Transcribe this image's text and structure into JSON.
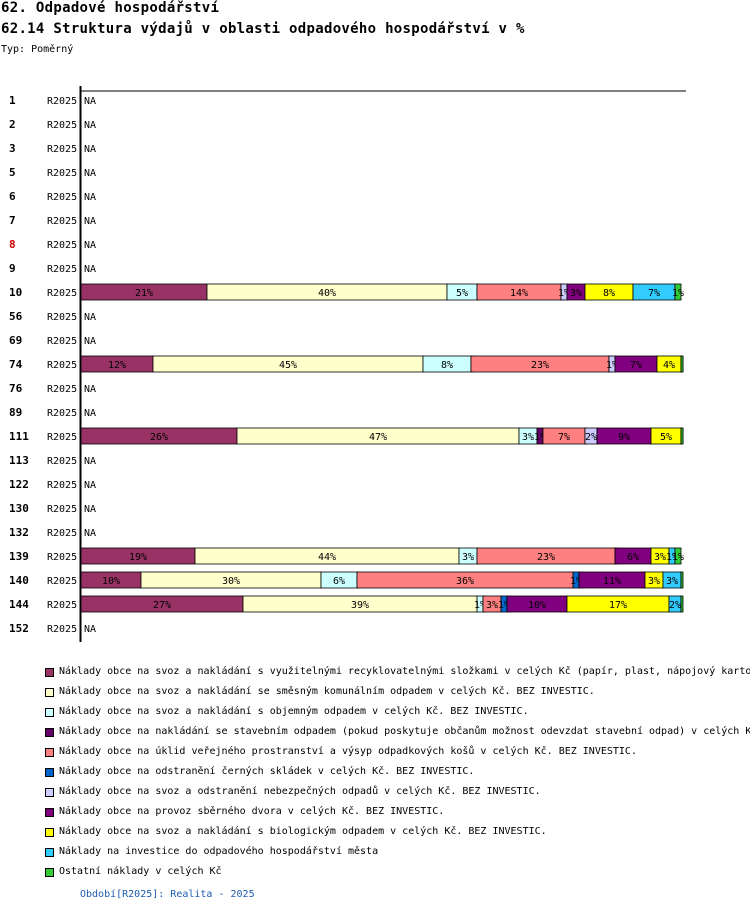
{
  "header": {
    "title": "62. Odpadové hospodářství",
    "subtitle": "62.14 Struktura výdajů v oblasti odpadového hospodářství v %",
    "type_label": "Typ: Poměrný"
  },
  "footer": {
    "period": "Období[R2025]: Realita - 2025"
  },
  "chart_data": {
    "type": "bar",
    "orientation": "horizontal",
    "stacked": true,
    "unit": "%",
    "xlim": [
      0,
      100
    ],
    "highlight_color": "#cc0000",
    "categories": [
      "1",
      "2",
      "3",
      "5",
      "6",
      "7",
      "8",
      "9",
      "10",
      "56",
      "69",
      "74",
      "76",
      "89",
      "111",
      "113",
      "122",
      "130",
      "132",
      "139",
      "140",
      "144",
      "152"
    ],
    "highlighted": [
      "8"
    ],
    "period_labels": [
      "R2025",
      "R2025",
      "R2025",
      "R2025",
      "R2025",
      "R2025",
      "R2025",
      "R2025",
      "R2025",
      "R2025",
      "R2025",
      "R2025",
      "R2025",
      "R2025",
      "R2025",
      "R2025",
      "R2025",
      "R2025",
      "R2025",
      "R2025",
      "R2025",
      "R2025",
      "R2025"
    ],
    "na_label": "NA",
    "series": [
      {
        "name": "Náklady obce na svoz a nakládání s využitelnými recyklovatelnými složkami v celých Kč (papír, plast, nápojový karton",
        "color": "#993366",
        "values": [
          null,
          null,
          null,
          null,
          null,
          null,
          null,
          null,
          21,
          null,
          null,
          12,
          null,
          null,
          26,
          null,
          null,
          null,
          null,
          19,
          10,
          27,
          null
        ]
      },
      {
        "name": "Náklady obce na svoz a nakládání se směsným komunálním odpadem v celých Kč.  BEZ INVESTIC.",
        "color": "#ffffcc",
        "values": [
          null,
          null,
          null,
          null,
          null,
          null,
          null,
          null,
          40,
          null,
          null,
          45,
          null,
          null,
          47,
          null,
          null,
          null,
          null,
          44,
          30,
          39,
          null
        ]
      },
      {
        "name": "Náklady obce na svoz a nakládání s objemným odpadem v celých Kč.  BEZ INVESTIC.",
        "color": "#ccffff",
        "values": [
          null,
          null,
          null,
          null,
          null,
          null,
          null,
          null,
          5,
          null,
          null,
          8,
          null,
          null,
          3,
          null,
          null,
          null,
          null,
          3,
          6,
          1,
          null
        ]
      },
      {
        "name": "Náklady obce na nakládání se stavebním odpadem (pokud poskytuje občanům možnost odevzdat stavební odpad) v celých K",
        "color": "#660066",
        "values": [
          null,
          null,
          null,
          null,
          null,
          null,
          null,
          null,
          0,
          null,
          null,
          0,
          null,
          null,
          1,
          null,
          null,
          null,
          null,
          0,
          0,
          0,
          null
        ]
      },
      {
        "name": "Náklady obce na úklid veřejného prostranství a výsyp odpadkových košů v celých Kč.  BEZ INVESTIC.",
        "color": "#ff8080",
        "values": [
          null,
          null,
          null,
          null,
          null,
          null,
          null,
          null,
          14,
          null,
          null,
          23,
          null,
          null,
          7,
          null,
          null,
          null,
          null,
          23,
          36,
          3,
          null
        ]
      },
      {
        "name": "Náklady obce na odstranění černých skládek v celých Kč.  BEZ INVESTIC.",
        "color": "#0066cc",
        "values": [
          null,
          null,
          null,
          null,
          null,
          null,
          null,
          null,
          0,
          null,
          null,
          0,
          null,
          null,
          0,
          null,
          null,
          null,
          null,
          0,
          1,
          1,
          null
        ]
      },
      {
        "name": "Náklady obce na svoz a odstranění nebezpečných odpadů v celých Kč.  BEZ INVESTIC.",
        "color": "#ccccff",
        "values": [
          null,
          null,
          null,
          null,
          null,
          null,
          null,
          null,
          1,
          null,
          null,
          1,
          null,
          null,
          2,
          null,
          null,
          null,
          null,
          0,
          0,
          0,
          null
        ]
      },
      {
        "name": "Náklady obce na provoz sběrného dvora v celých Kč.  BEZ INVESTIC.",
        "color": "#800080",
        "values": [
          null,
          null,
          null,
          null,
          null,
          null,
          null,
          null,
          3,
          null,
          null,
          7,
          null,
          null,
          9,
          null,
          null,
          null,
          null,
          6,
          11,
          10,
          null
        ]
      },
      {
        "name": "Náklady obce na svoz a nakládání s biologickým odpadem v celých Kč.  BEZ INVESTIC.",
        "color": "#ffff00",
        "values": [
          null,
          null,
          null,
          null,
          null,
          null,
          null,
          null,
          8,
          null,
          null,
          4,
          null,
          null,
          5,
          null,
          null,
          null,
          null,
          3,
          3,
          17,
          null
        ]
      },
      {
        "name": "Náklady na investice do odpadového hospodářství města",
        "color": "#33ccff",
        "values": [
          null,
          null,
          null,
          null,
          null,
          null,
          null,
          null,
          7,
          null,
          null,
          0,
          null,
          null,
          0,
          null,
          null,
          null,
          null,
          1,
          3,
          2,
          null
        ]
      },
      {
        "name": "Ostatní náklady v celých Kč",
        "color": "#33cc33",
        "values": [
          null,
          null,
          null,
          null,
          null,
          null,
          null,
          null,
          1,
          null,
          null,
          0,
          null,
          null,
          0,
          null,
          null,
          null,
          null,
          1,
          0,
          0,
          null
        ]
      }
    ]
  }
}
